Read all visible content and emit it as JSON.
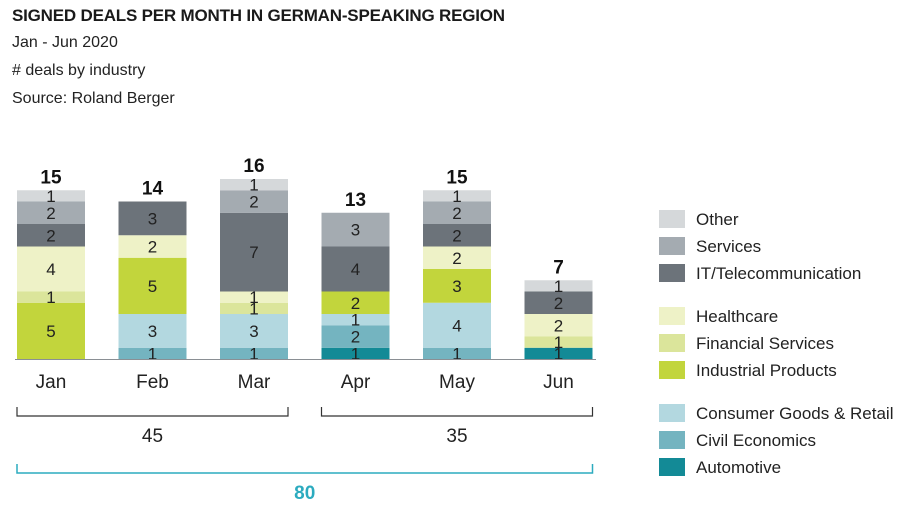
{
  "header": {
    "title": "SIGNED DEALS PER MONTH IN GERMAN-SPEAKING REGION",
    "subtitle": "Jan - Jun 2020",
    "unit": "# deals by industry",
    "source": "Source: Roland Berger"
  },
  "chart_data": {
    "type": "bar",
    "stacked": true,
    "categories": [
      "Jan",
      "Feb",
      "Mar",
      "Apr",
      "May",
      "Jun"
    ],
    "totals": [
      15,
      14,
      16,
      13,
      15,
      7
    ],
    "ylim": [
      0,
      16
    ],
    "grid": false,
    "legend_position": "right",
    "series": [
      {
        "name": "Automotive",
        "color": "#138a96",
        "values": [
          0,
          0,
          0,
          1,
          0,
          1
        ]
      },
      {
        "name": "Civil Economics",
        "color": "#74b4c0",
        "values": [
          0,
          1,
          1,
          2,
          1,
          0
        ]
      },
      {
        "name": "Consumer Goods & Retail",
        "color": "#b3d8e0",
        "values": [
          0,
          3,
          3,
          1,
          4,
          0
        ]
      },
      {
        "name": "Industrial Products",
        "color": "#c2d53c",
        "values": [
          5,
          5,
          0,
          2,
          3,
          0
        ]
      },
      {
        "name": "Financial Services",
        "color": "#dbe59b",
        "values": [
          1,
          0,
          1,
          0,
          0,
          1
        ]
      },
      {
        "name": "Healthcare",
        "color": "#eef2c7",
        "values": [
          4,
          2,
          1,
          0,
          2,
          2
        ]
      },
      {
        "name": "IT/Telecommunication",
        "color": "#6c737a",
        "values": [
          2,
          3,
          7,
          4,
          2,
          2
        ]
      },
      {
        "name": "Services",
        "color": "#a4abb1",
        "values": [
          2,
          0,
          2,
          3,
          2,
          0
        ]
      },
      {
        "name": "Other",
        "color": "#d5d8da",
        "values": [
          1,
          0,
          1,
          0,
          1,
          1
        ]
      }
    ],
    "legend_groups": [
      [
        "Other",
        "Services",
        "IT/Telecommunication"
      ],
      [
        "Healthcare",
        "Financial Services",
        "Industrial Products"
      ],
      [
        "Consumer Goods & Retail",
        "Civil Economics",
        "Automotive"
      ]
    ],
    "group_sums": [
      {
        "label": "45",
        "months": [
          "Jan",
          "Feb",
          "Mar"
        ]
      },
      {
        "label": "35",
        "months": [
          "Apr",
          "May",
          "Jun"
        ]
      }
    ],
    "grand_total": {
      "label": "80",
      "color": "#2cabbf"
    }
  }
}
